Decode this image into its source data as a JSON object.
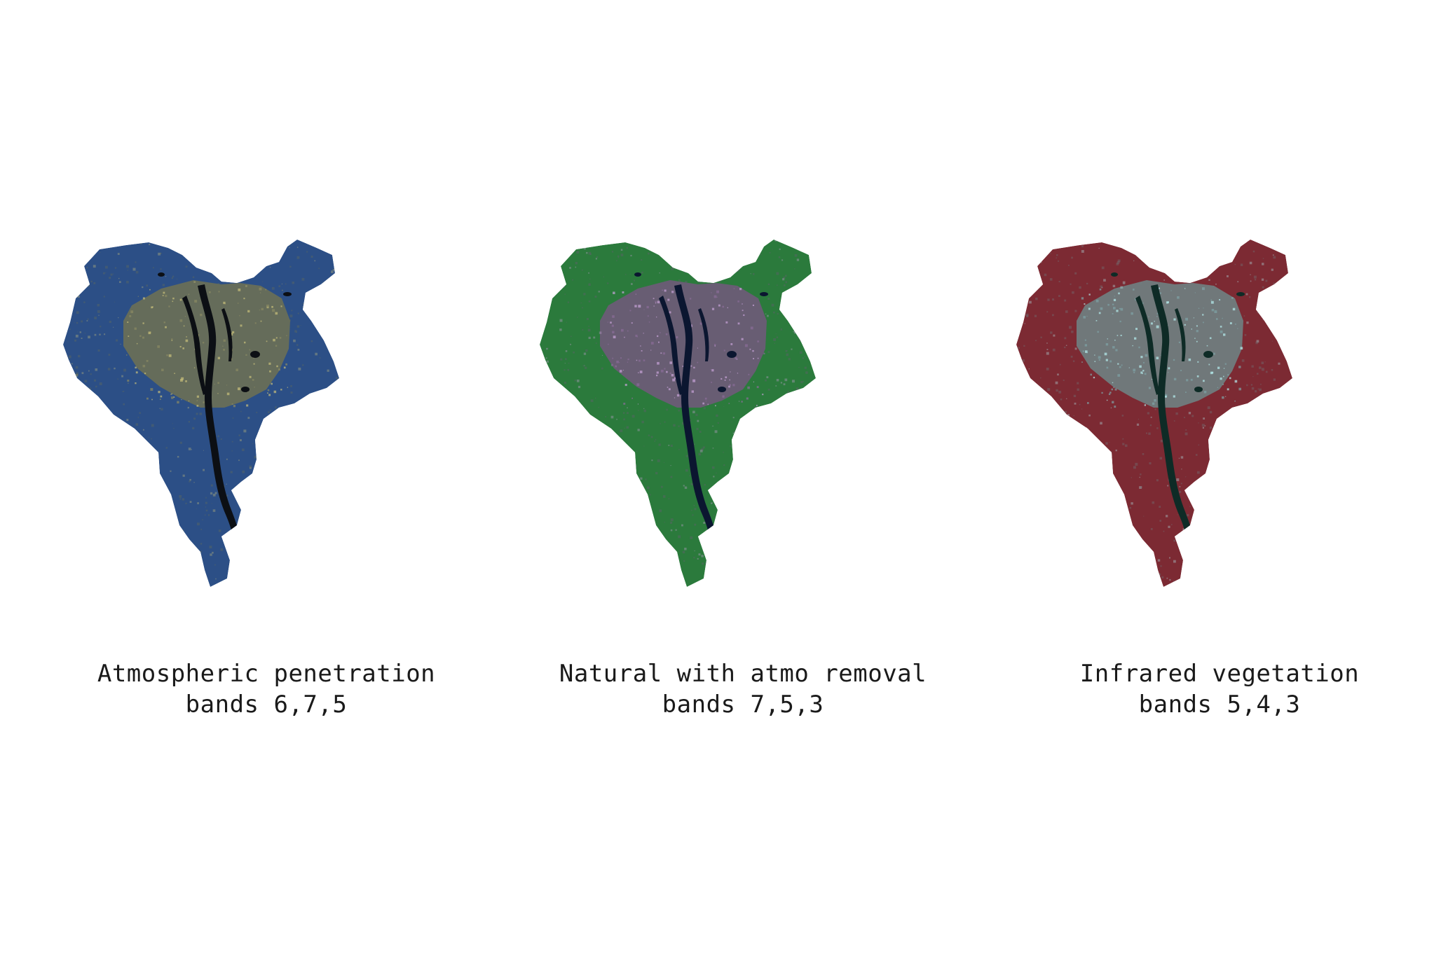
{
  "maps": [
    {
      "title": "Atmospheric penetration",
      "subtitle": "bands 6,7,5",
      "colors": {
        "outer": "#2c4f86",
        "urban": "#6a6f57",
        "urban_light": "#8a8a63",
        "river": "#0c0f14",
        "speckle": "#c9c07a"
      }
    },
    {
      "title": "Natural with atmo removal",
      "subtitle": "bands 7,5,3",
      "colors": {
        "outer": "#2b7a3c",
        "urban": "#6e5a78",
        "urban_light": "#8a6d99",
        "river": "#0b1630",
        "speckle": "#c8a4d8"
      }
    },
    {
      "title": "Infrared vegetation",
      "subtitle": "bands 5,4,3",
      "colors": {
        "outer": "#7c2a33",
        "urban": "#6f7f80",
        "urban_light": "#7fa3a6",
        "river": "#0e2b26",
        "speckle": "#b6eef0"
      }
    }
  ]
}
